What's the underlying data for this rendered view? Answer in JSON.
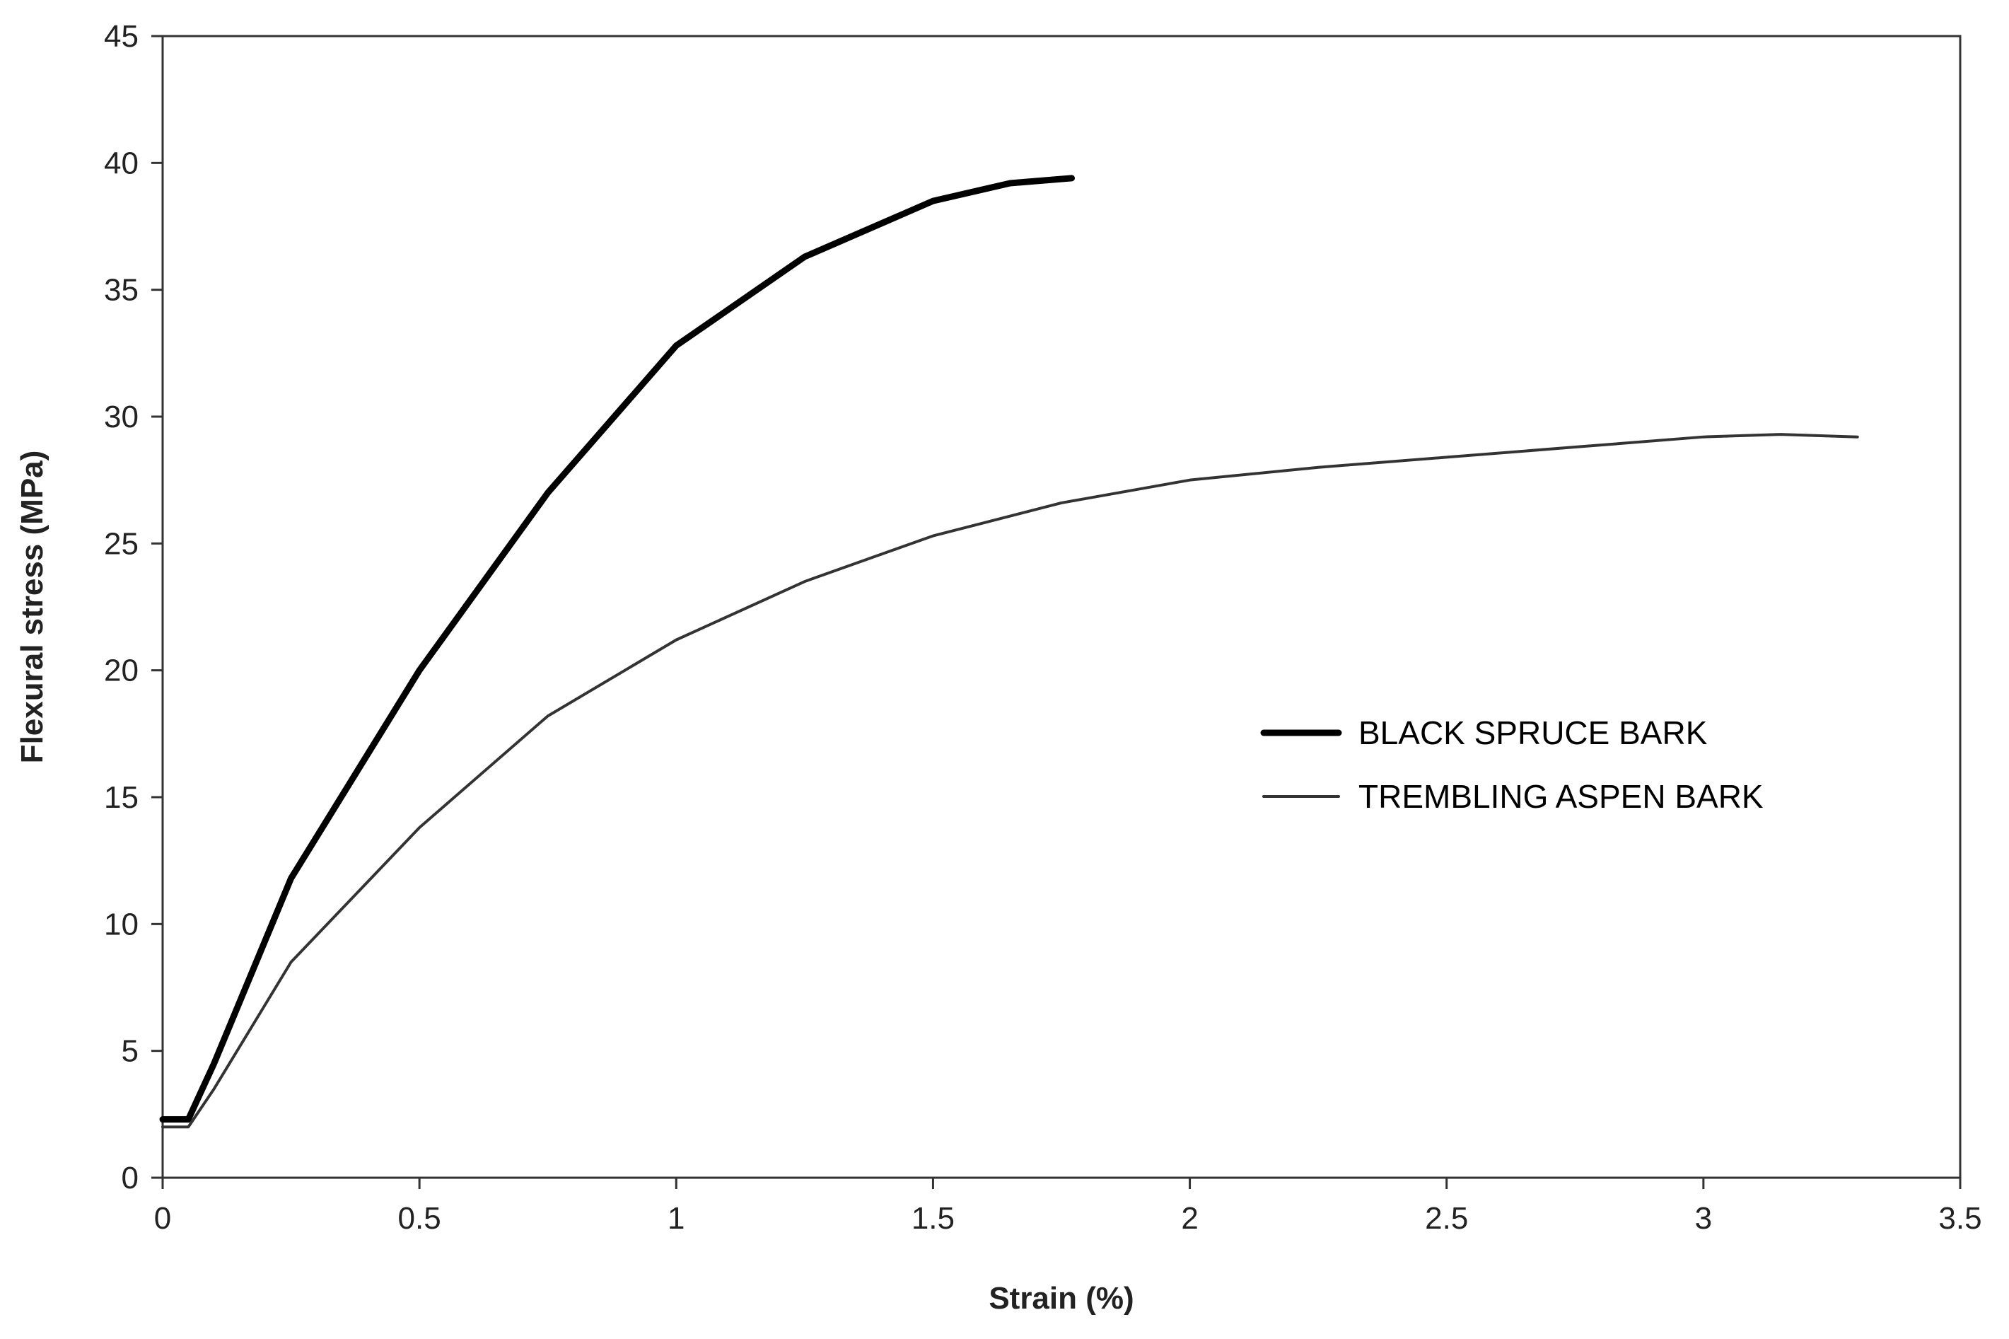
{
  "chart_data": {
    "type": "line",
    "x_label": "Strain (%)",
    "y_label": "Flexural stress (MPa)",
    "xlim": [
      0,
      3.5
    ],
    "ylim": [
      0,
      45
    ],
    "xticks": [
      0,
      0.5,
      1,
      1.5,
      2,
      2.5,
      3,
      3.5
    ],
    "yticks": [
      0,
      5,
      10,
      15,
      20,
      25,
      30,
      35,
      40,
      45
    ],
    "grid": false,
    "series": [
      {
        "name": "BLACK SPRUCE BARK",
        "color": "#000000",
        "width": 9,
        "x": [
          0,
          0.05,
          0.1,
          0.25,
          0.5,
          0.75,
          1,
          1.25,
          1.5,
          1.65,
          1.77
        ],
        "values": [
          2.3,
          2.3,
          4.5,
          11.8,
          20,
          27,
          32.8,
          36.3,
          38.5,
          39.2,
          39.4
        ]
      },
      {
        "name": "TREMBLING ASPEN BARK",
        "color": "#333333",
        "width": 4,
        "x": [
          0,
          0.05,
          0.1,
          0.25,
          0.5,
          0.75,
          1,
          1.25,
          1.5,
          1.75,
          2,
          2.25,
          2.5,
          2.75,
          3,
          3.15,
          3.3
        ],
        "values": [
          2,
          2,
          3.5,
          8.5,
          13.8,
          18.2,
          21.2,
          23.5,
          25.3,
          26.6,
          27.5,
          28,
          28.4,
          28.8,
          29.2,
          29.3,
          29.2
        ]
      }
    ]
  }
}
